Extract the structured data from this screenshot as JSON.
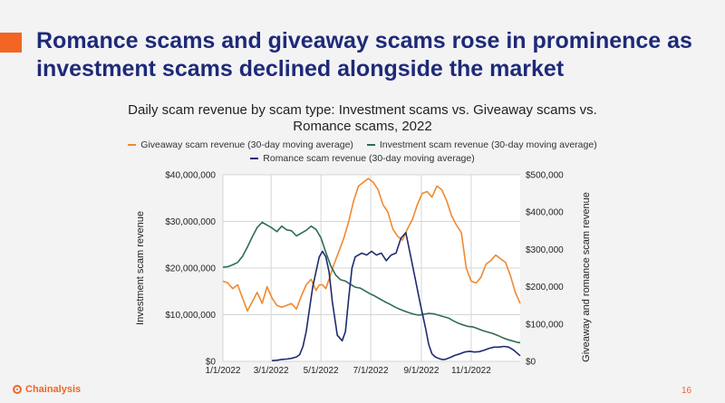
{
  "slide": {
    "headline": "Romance scams and giveaway scams rose in prominence as investment scams declined alongside the market",
    "page_number": "16",
    "brand": "Chainalysis",
    "accent_color": "#f26522",
    "headline_color": "#1e2a78",
    "logo_icon": "chainalysis-logo-icon"
  },
  "chart_data": {
    "type": "line",
    "title": "Daily scam revenue by scam type: Investment scams vs. Giveaway scams vs. Romance scams, 2022",
    "legend_placement": "top",
    "grid": true,
    "x_ticks": [
      "1/1/2022",
      "3/1/2022",
      "5/1/2022",
      "7/1/2022",
      "9/1/2022",
      "11/1/2022"
    ],
    "x_tick_days": [
      0,
      59,
      120,
      181,
      243,
      304
    ],
    "x_range_days": [
      0,
      364
    ],
    "y_left": {
      "label": "Investment scam revenue",
      "range": [
        0,
        40000000
      ],
      "ticks": [
        "$0",
        "$10,000,000",
        "$20,000,000",
        "$30,000,000",
        "$40,000,000"
      ]
    },
    "y_right": {
      "label": "Giveaway and romance scam revenue",
      "range": [
        0,
        500000
      ],
      "ticks": [
        "$0",
        "$100,000",
        "$200,000",
        "$300,000",
        "$400,000",
        "$500,000"
      ]
    },
    "series": [
      {
        "name": "Giveaway scam revenue (30-day moving average)",
        "axis": "right",
        "color": "#f0892f",
        "x": [
          0,
          6,
          12,
          18,
          24,
          30,
          36,
          42,
          48,
          54,
          60,
          66,
          72,
          78,
          84,
          90,
          96,
          102,
          108,
          114,
          118,
          122,
          126,
          130,
          136,
          142,
          148,
          154,
          160,
          166,
          172,
          178,
          184,
          190,
          196,
          202,
          208,
          214,
          220,
          226,
          232,
          238,
          244,
          250,
          256,
          262,
          268,
          274,
          280,
          286,
          292,
          298,
          304,
          310,
          316,
          322,
          328,
          334,
          340,
          346,
          352,
          358,
          364
        ],
        "values": [
          215000,
          210000,
          195000,
          205000,
          170000,
          135000,
          160000,
          185000,
          155000,
          200000,
          170000,
          150000,
          145000,
          150000,
          155000,
          140000,
          175000,
          205000,
          220000,
          190000,
          205000,
          205000,
          195000,
          220000,
          260000,
          295000,
          330000,
          375000,
          430000,
          470000,
          480000,
          490000,
          480000,
          460000,
          420000,
          400000,
          355000,
          335000,
          325000,
          355000,
          380000,
          420000,
          450000,
          455000,
          440000,
          470000,
          460000,
          430000,
          390000,
          365000,
          345000,
          250000,
          215000,
          210000,
          225000,
          260000,
          270000,
          285000,
          275000,
          265000,
          230000,
          185000,
          155000
        ]
      },
      {
        "name": "Investment scam revenue (30-day moving average)",
        "axis": "left",
        "color": "#2e6b55",
        "x": [
          0,
          6,
          12,
          18,
          24,
          30,
          36,
          42,
          48,
          54,
          60,
          66,
          72,
          78,
          84,
          90,
          96,
          102,
          108,
          114,
          120,
          126,
          132,
          138,
          144,
          150,
          156,
          162,
          168,
          174,
          180,
          186,
          192,
          198,
          204,
          210,
          216,
          222,
          228,
          234,
          240,
          246,
          252,
          258,
          264,
          270,
          276,
          282,
          288,
          294,
          300,
          306,
          312,
          318,
          324,
          330,
          336,
          342,
          348,
          354,
          360,
          364
        ],
        "values": [
          20200000,
          20300000,
          20700000,
          21200000,
          22500000,
          24500000,
          26700000,
          28700000,
          29800000,
          29200000,
          28600000,
          27800000,
          29000000,
          28200000,
          28000000,
          26900000,
          27500000,
          28100000,
          29000000,
          28300000,
          26500000,
          23400000,
          20500000,
          18500000,
          17500000,
          17200000,
          16500000,
          15900000,
          15700000,
          15100000,
          14500000,
          14000000,
          13400000,
          12800000,
          12300000,
          11700000,
          11200000,
          10800000,
          10400000,
          10100000,
          9900000,
          10100000,
          10300000,
          10200000,
          9900000,
          9600000,
          9300000,
          8700000,
          8200000,
          7800000,
          7500000,
          7400000,
          7000000,
          6600000,
          6300000,
          6000000,
          5600000,
          5100000,
          4700000,
          4400000,
          4100000,
          4000000
        ]
      },
      {
        "name": "Romance scam revenue (30-day moving average)",
        "axis": "right",
        "color": "#1f2b6e",
        "x": [
          60,
          66,
          72,
          78,
          84,
          90,
          94,
          98,
          102,
          106,
          110,
          114,
          118,
          122,
          126,
          130,
          134,
          140,
          146,
          150,
          154,
          158,
          162,
          166,
          170,
          176,
          182,
          188,
          194,
          200,
          206,
          212,
          218,
          224,
          230,
          236,
          242,
          248,
          252,
          256,
          260,
          264,
          268,
          272,
          278,
          284,
          290,
          296,
          302,
          308,
          314,
          320,
          326,
          332,
          338,
          344,
          350,
          356,
          364
        ],
        "values": [
          2000,
          3000,
          5000,
          6000,
          8000,
          12000,
          18000,
          40000,
          80000,
          140000,
          200000,
          240000,
          280000,
          295000,
          280000,
          240000,
          160000,
          70000,
          55000,
          80000,
          170000,
          250000,
          280000,
          285000,
          290000,
          285000,
          295000,
          285000,
          290000,
          270000,
          285000,
          290000,
          330000,
          345000,
          280000,
          215000,
          150000,
          90000,
          45000,
          20000,
          12000,
          8000,
          5000,
          5000,
          10000,
          16000,
          20000,
          25000,
          27000,
          25000,
          26000,
          30000,
          35000,
          38000,
          38000,
          40000,
          38000,
          30000,
          15000
        ]
      }
    ]
  }
}
